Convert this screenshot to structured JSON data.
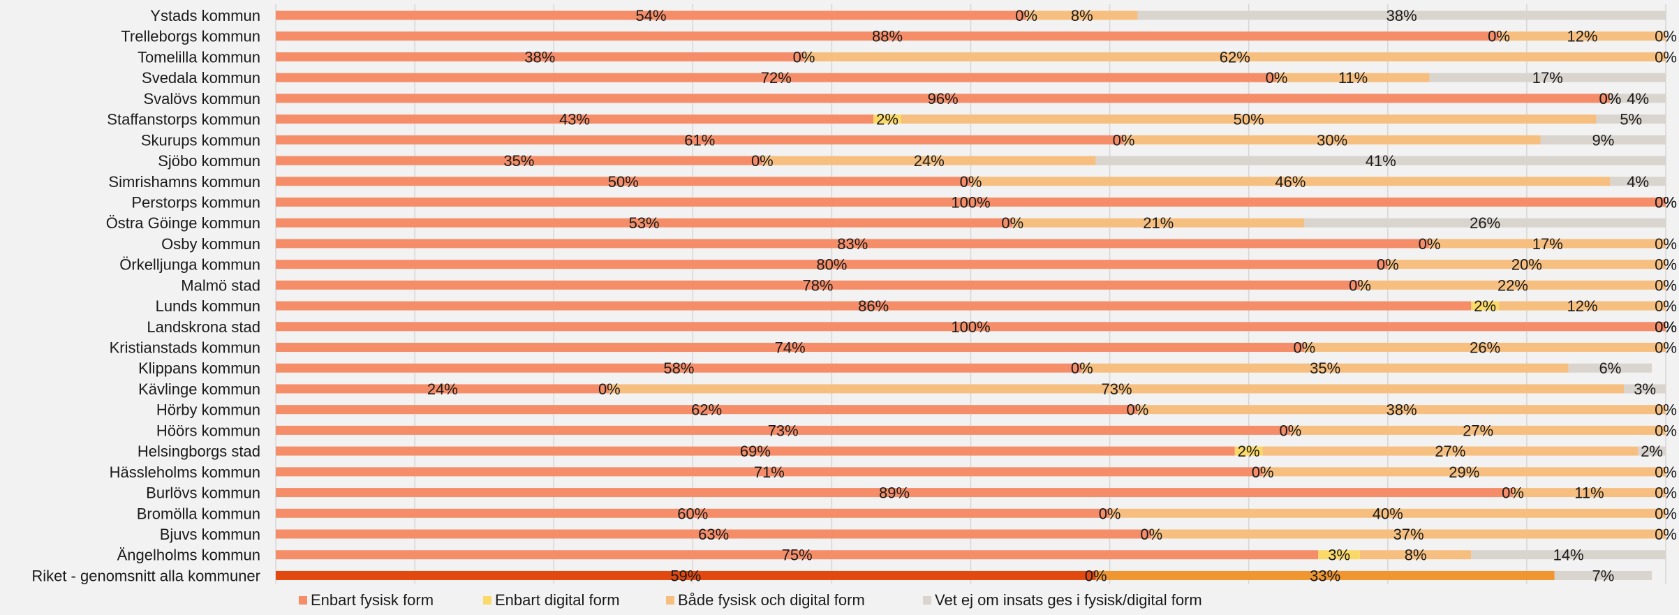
{
  "chart_data": {
    "type": "bar",
    "orientation": "horizontal",
    "stacked": "percent",
    "xlim": [
      0,
      100
    ],
    "grid": true,
    "legend_position": "bottom",
    "categories": [
      "Ystads kommun",
      "Trelleborgs kommun",
      "Tomelilla kommun",
      "Svedala kommun",
      "Svalövs kommun",
      "Staffanstorps kommun",
      "Skurups kommun",
      "Sjöbo kommun",
      "Simrishamns kommun",
      "Perstorps kommun",
      "Östra Göinge kommun",
      "Osby kommun",
      "Örkelljunga kommun",
      "Malmö stad",
      "Lunds kommun",
      "Landskrona stad",
      "Kristianstads kommun",
      "Klippans kommun",
      "Kävlinge kommun",
      "Hörby kommun",
      "Höörs kommun",
      "Helsingborgs stad",
      "Hässleholms kommun",
      "Burlövs kommun",
      "Bromölla kommun",
      "Bjuvs kommun",
      "Ängelholms kommun",
      "Riket - genomsnitt alla kommuner"
    ],
    "series": [
      {
        "name": "Enbart fysisk form",
        "color": "#f58d69",
        "highlight_color": "#e2490f",
        "values": [
          54,
          88,
          38,
          72,
          96,
          43,
          61,
          35,
          50,
          100,
          53,
          83,
          80,
          78,
          86,
          100,
          74,
          58,
          24,
          62,
          73,
          69,
          71,
          89,
          60,
          63,
          75,
          59
        ]
      },
      {
        "name": "Enbart digital form",
        "color": "#fbd968",
        "highlight_color": "#f4b942",
        "values": [
          0,
          0,
          0,
          0,
          0,
          2,
          0,
          0,
          0,
          0,
          0,
          0,
          0,
          0,
          2,
          0,
          0,
          0,
          0,
          0,
          0,
          2,
          0,
          0,
          0,
          0,
          3,
          0
        ]
      },
      {
        "name": "Både fysisk och digital form",
        "color": "#f6bf7f",
        "highlight_color": "#ef9631",
        "values": [
          8,
          12,
          62,
          11,
          0,
          50,
          30,
          24,
          46,
          0,
          21,
          17,
          20,
          22,
          12,
          0,
          26,
          35,
          73,
          38,
          27,
          27,
          29,
          11,
          40,
          37,
          8,
          33
        ]
      },
      {
        "name": "Vet ej om insats ges i fysisk/digital form",
        "color": "#d9d4ce",
        "highlight_color": "#d9d4ce",
        "values": [
          38,
          0,
          0,
          17,
          4,
          5,
          9,
          41,
          4,
          0,
          26,
          0,
          0,
          0,
          0,
          0,
          0,
          6,
          3,
          0,
          0,
          2,
          0,
          0,
          0,
          0,
          14,
          7
        ]
      }
    ],
    "highlight_category": "Riket - genomsnitt alla kommuner"
  }
}
